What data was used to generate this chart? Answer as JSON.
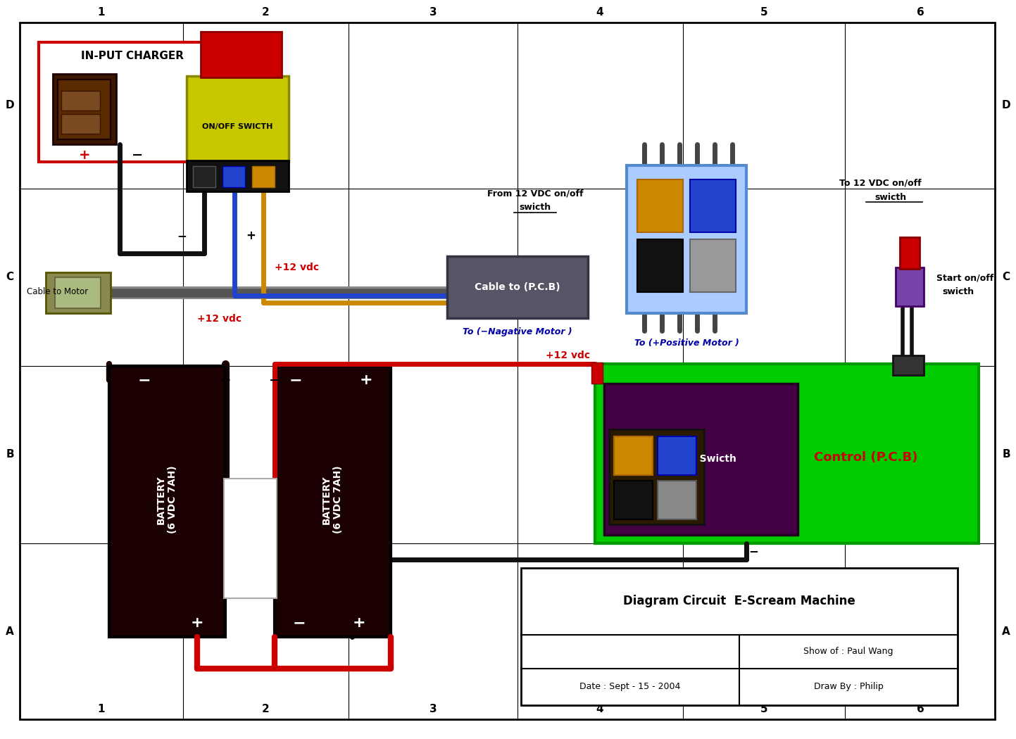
{
  "bg_color": "#ffffff",
  "title_block": {
    "title": "Diagram Circuit  E-Scream Machine",
    "show_of": "Show of : Paul Wang",
    "date": "Date : Sept - 15 - 2004",
    "draw_by": "Draw By : Philip"
  }
}
